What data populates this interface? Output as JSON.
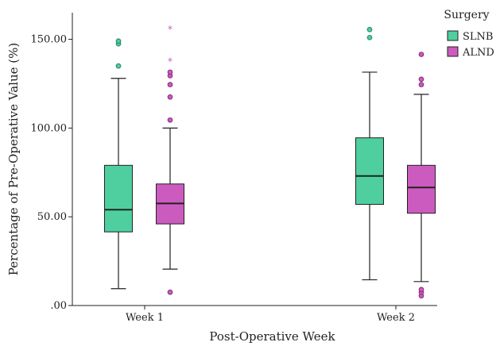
{
  "chart_data": {
    "type": "boxplot",
    "title": "",
    "xlabel": "Post-Operative Week",
    "ylabel": "Percentage of Pre-Operative Value (%)",
    "categories": [
      "Week 1",
      "Week 2"
    ],
    "ylim": [
      0,
      165
    ],
    "yticks": [
      0,
      50,
      100,
      150
    ],
    "ytick_labels": [
      ".00",
      "50.00",
      "100.00",
      "150.00"
    ],
    "legend": {
      "title": "Surgery",
      "position": "top-right"
    },
    "grid": false,
    "series": [
      {
        "name": "SLNB",
        "color": "#4fcfa0",
        "outlier_color": "#2a8a6a",
        "boxes": [
          {
            "category": "Week 1",
            "min": 9.5,
            "q1": 41.5,
            "median": 54,
            "q3": 79,
            "max": 128,
            "outliers": [
              135,
              147.5,
              149
            ],
            "extremes": []
          },
          {
            "category": "Week 2",
            "min": 14.5,
            "q1": 57,
            "median": 73,
            "q3": 94.5,
            "max": 131.5,
            "outliers": [
              151,
              155.5
            ],
            "extremes": []
          }
        ]
      },
      {
        "name": "ALND",
        "color": "#cc5bbf",
        "outlier_color": "#8a2f7f",
        "boxes": [
          {
            "category": "Week 1",
            "min": 20.5,
            "q1": 46,
            "median": 57.5,
            "q3": 68.5,
            "max": 100,
            "outliers": [
              7.5,
              104.5,
              117.5,
              124.5,
              129.5,
              131.5
            ],
            "extremes": [
              138,
              156
            ]
          },
          {
            "category": "Week 2",
            "min": 13.5,
            "q1": 52,
            "median": 66.5,
            "q3": 79,
            "max": 119,
            "outliers": [
              5.5,
              7.5,
              9,
              124.5,
              127.5,
              141.5
            ],
            "extremes": []
          }
        ]
      }
    ]
  }
}
